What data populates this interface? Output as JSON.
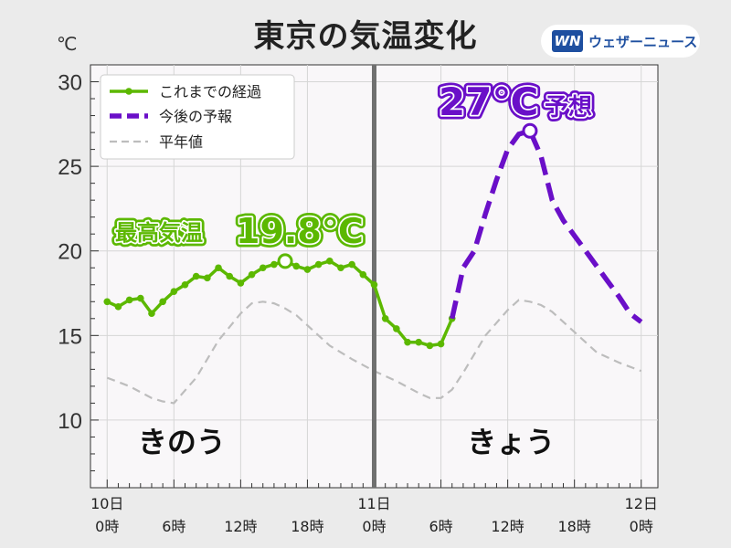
{
  "title": "東京の気温変化",
  "unit": "℃",
  "logo": {
    "mark": "WN",
    "text": "ウェザーニュース"
  },
  "legend": [
    {
      "label": "これまでの経過",
      "color": "#5cb800"
    },
    {
      "label": "今後の予報",
      "color": "#6a0fc8"
    },
    {
      "label": "平年値",
      "color": "#bbbbbb"
    }
  ],
  "annotations": {
    "max_label": "最高気温",
    "max_value": "19.8℃",
    "forecast_value": "27℃",
    "forecast_label": "予想",
    "day1": "きのう",
    "day2": "きょう"
  },
  "chart_data": {
    "type": "line",
    "ylim": [
      6,
      31
    ],
    "xlim": [
      -1.5,
      49.5
    ],
    "y_ticks": [
      10,
      15,
      20,
      25,
      30
    ],
    "x_ticks": [
      {
        "x": 0,
        "line1": "10日",
        "line2": "0時"
      },
      {
        "x": 6,
        "line1": "",
        "line2": "6時"
      },
      {
        "x": 12,
        "line1": "",
        "line2": "12時"
      },
      {
        "x": 18,
        "line1": "",
        "line2": "18時"
      },
      {
        "x": 24,
        "line1": "11日",
        "line2": "0時"
      },
      {
        "x": 30,
        "line1": "",
        "line2": "6時"
      },
      {
        "x": 36,
        "line1": "",
        "line2": "12時"
      },
      {
        "x": 42,
        "line1": "",
        "line2": "18時"
      },
      {
        "x": 48,
        "line1": "12日",
        "line2": "0時"
      }
    ],
    "grid": true,
    "legend_position": "top-left",
    "now_x": 24,
    "series": [
      {
        "name": "これまでの経過",
        "x": [
          0,
          1,
          2,
          3,
          4,
          5,
          6,
          7,
          8,
          9,
          10,
          11,
          12,
          13,
          14,
          15,
          16,
          17,
          18,
          19,
          20,
          21,
          22,
          23,
          24,
          25,
          26,
          27,
          28,
          29,
          30,
          31
        ],
        "y": [
          17.0,
          16.7,
          17.1,
          17.2,
          16.3,
          17.0,
          17.6,
          18.0,
          18.5,
          18.4,
          19.0,
          18.5,
          18.1,
          18.6,
          19.0,
          19.2,
          19.4,
          19.1,
          18.9,
          19.2,
          19.4,
          19.0,
          19.2,
          18.6,
          18.0,
          16.0,
          15.4,
          14.6,
          14.6,
          14.4,
          14.5,
          16.0
        ],
        "max": {
          "x": 16,
          "y": 19.4
        }
      },
      {
        "name": "今後の予報",
        "x": [
          31,
          32,
          33,
          34,
          35,
          36,
          37,
          38,
          39,
          40,
          41,
          42,
          43,
          44,
          45,
          46,
          47,
          48
        ],
        "y": [
          16.0,
          19.0,
          20.0,
          22.2,
          24.2,
          26.0,
          26.9,
          27.1,
          25.6,
          23.0,
          21.8,
          20.9,
          20.0,
          19.1,
          18.2,
          17.3,
          16.3,
          15.8
        ],
        "max": {
          "x": 38,
          "y": 27.1
        }
      },
      {
        "name": "平年値",
        "x": [
          0,
          2,
          4,
          5,
          6,
          8,
          10,
          12,
          13,
          14,
          15,
          16,
          17,
          18,
          20,
          22,
          24,
          26,
          28,
          29,
          30,
          31,
          32,
          34,
          36,
          37,
          38,
          39,
          40,
          42,
          44,
          46,
          48
        ],
        "y": [
          12.5,
          12.0,
          11.3,
          11.1,
          11.0,
          12.5,
          14.7,
          16.3,
          16.9,
          17.0,
          16.9,
          16.6,
          16.2,
          15.6,
          14.4,
          13.6,
          12.9,
          12.3,
          11.6,
          11.3,
          11.3,
          11.8,
          12.8,
          15.0,
          16.5,
          17.1,
          17.0,
          16.8,
          16.4,
          15.2,
          14.0,
          13.4,
          12.9
        ]
      }
    ]
  }
}
